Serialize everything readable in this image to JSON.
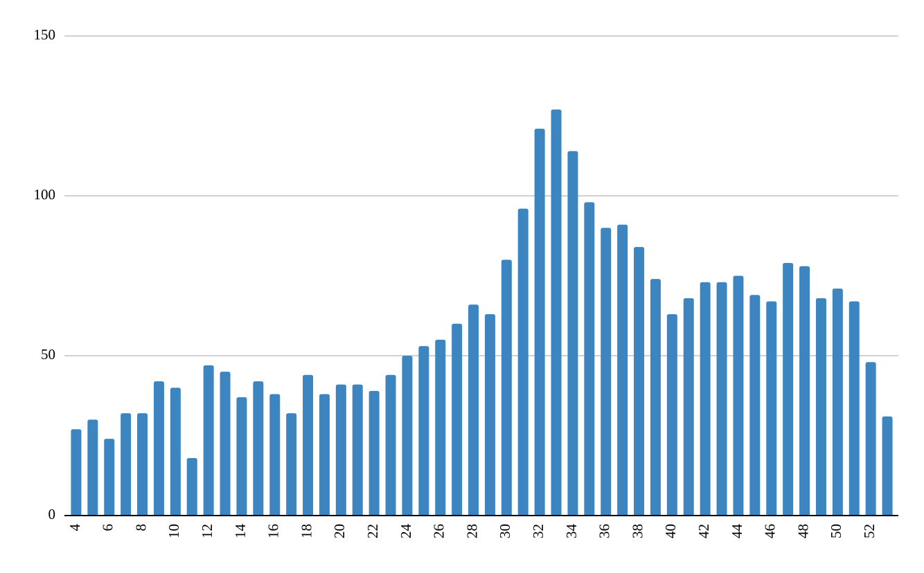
{
  "chart_data": {
    "type": "bar",
    "categories": [
      "4",
      null,
      "6",
      null,
      "8",
      null,
      "10",
      null,
      "12",
      null,
      "14",
      null,
      "16",
      null,
      "18",
      null,
      "20",
      null,
      "22",
      null,
      "24",
      null,
      "26",
      null,
      "28",
      null,
      "30",
      null,
      "32",
      null,
      "34",
      null,
      "36",
      null,
      "38",
      null,
      "40",
      null,
      "42",
      null,
      "44",
      null,
      "46",
      null,
      "48",
      null,
      "50",
      null,
      "52",
      null
    ],
    "values": [
      27,
      30,
      24,
      32,
      32,
      42,
      40,
      18,
      47,
      45,
      37,
      42,
      38,
      32,
      44,
      38,
      41,
      41,
      39,
      44,
      50,
      53,
      55,
      60,
      66,
      63,
      80,
      96,
      121,
      127,
      114,
      98,
      90,
      91,
      84,
      74,
      63,
      68,
      73,
      73,
      75,
      69,
      67,
      79,
      78,
      68,
      71,
      67,
      48,
      31
    ],
    "color": "#3d85c0",
    "ylim": [
      0,
      150
    ],
    "yticks": [
      0,
      50,
      100,
      150
    ],
    "grid": true
  }
}
